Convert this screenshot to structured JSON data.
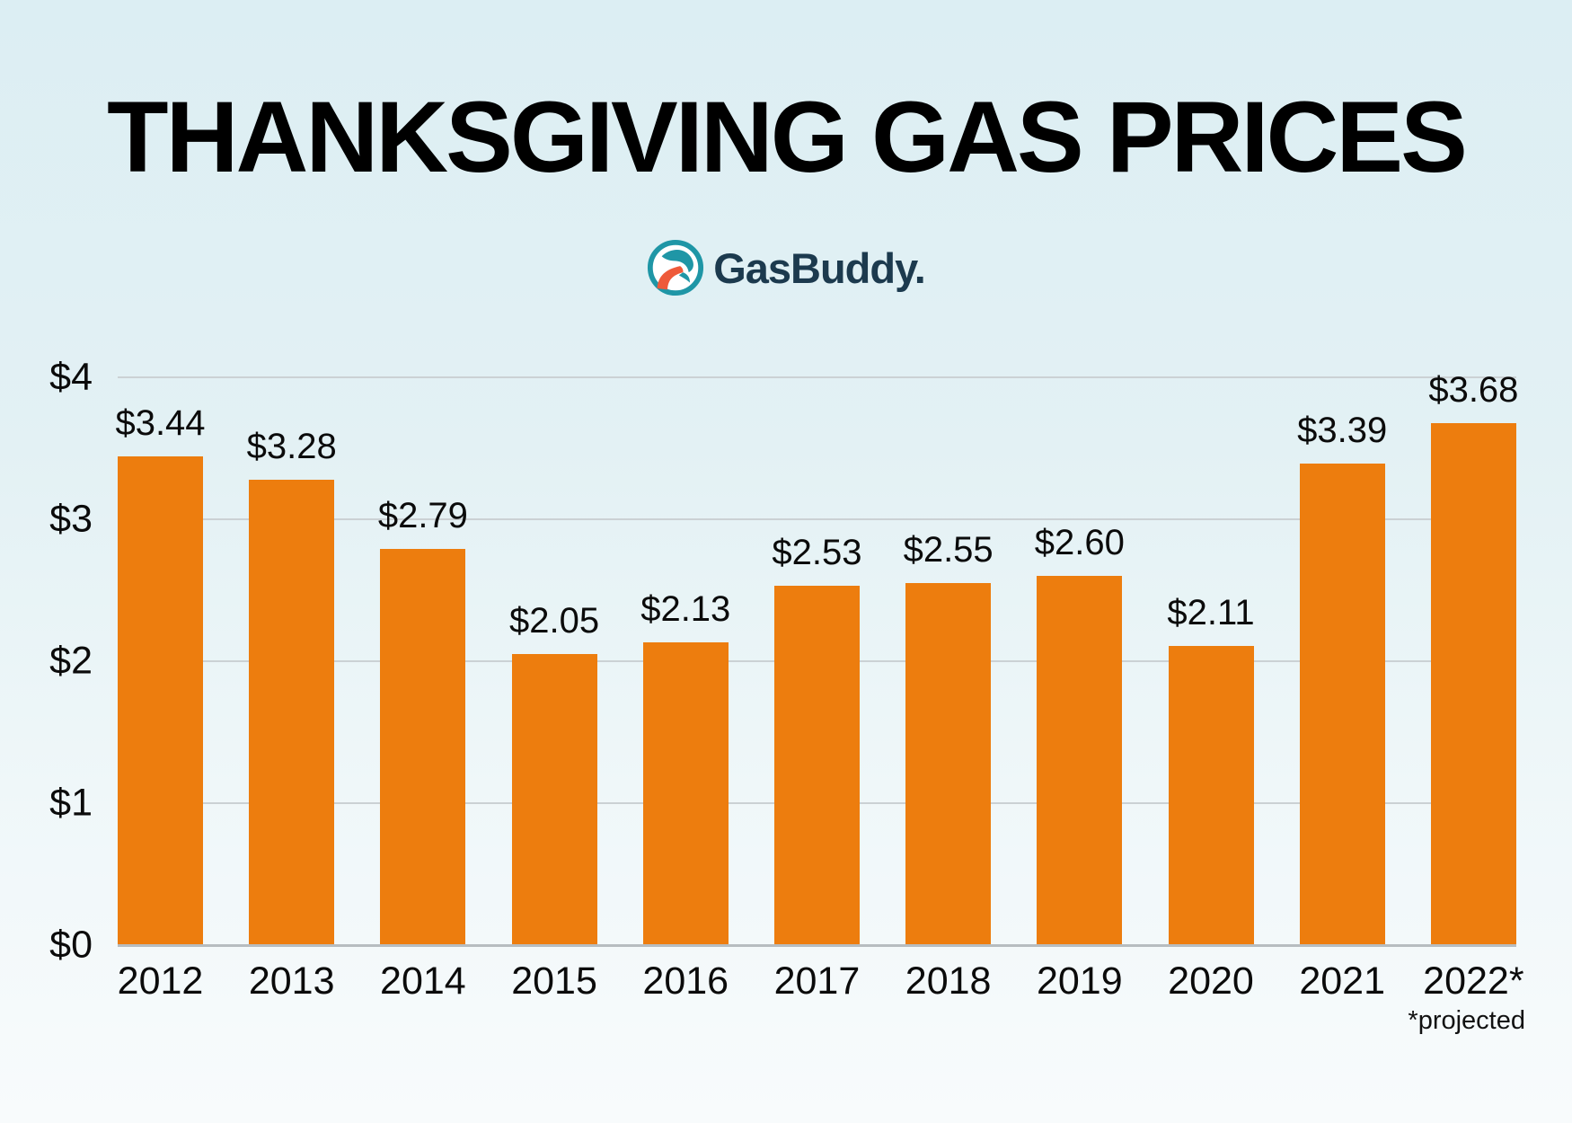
{
  "title": "THANKSGIVING GAS PRICES",
  "brand": {
    "wordmark": "GasBuddy.",
    "icon": "gasbuddy-road-icon"
  },
  "chart_data": {
    "type": "bar",
    "title": "THANKSGIVING GAS PRICES",
    "categories": [
      "2012",
      "2013",
      "2014",
      "2015",
      "2016",
      "2017",
      "2018",
      "2019",
      "2020",
      "2021",
      "2022*"
    ],
    "values": [
      3.44,
      3.28,
      2.79,
      2.05,
      2.13,
      2.53,
      2.55,
      2.6,
      2.11,
      3.39,
      3.68
    ],
    "bar_labels": [
      "$3.44",
      "$3.28",
      "$2.79",
      "$2.05",
      "$2.13",
      "$2.53",
      "$2.55",
      "$2.60",
      "$2.11",
      "$3.39",
      "$3.68"
    ],
    "y_ticks": [
      "$4",
      "$3",
      "$2",
      "$1",
      "$0"
    ],
    "ylim": [
      0,
      4
    ],
    "grid": true,
    "legend": "none",
    "footnote": "*projected",
    "colors": {
      "bar": "#ED7D0E",
      "gridline": "#CBD1D4",
      "baseline": "#B7BDC0",
      "background_top": "#DCEEF3",
      "background_bottom": "#F8FBFC",
      "label_text": "#0B0B0B",
      "title_text": "#000000",
      "brand_navy": "#1C3A4E",
      "brand_teal": "#1F96A6",
      "brand_red": "#EE5A3A"
    }
  }
}
